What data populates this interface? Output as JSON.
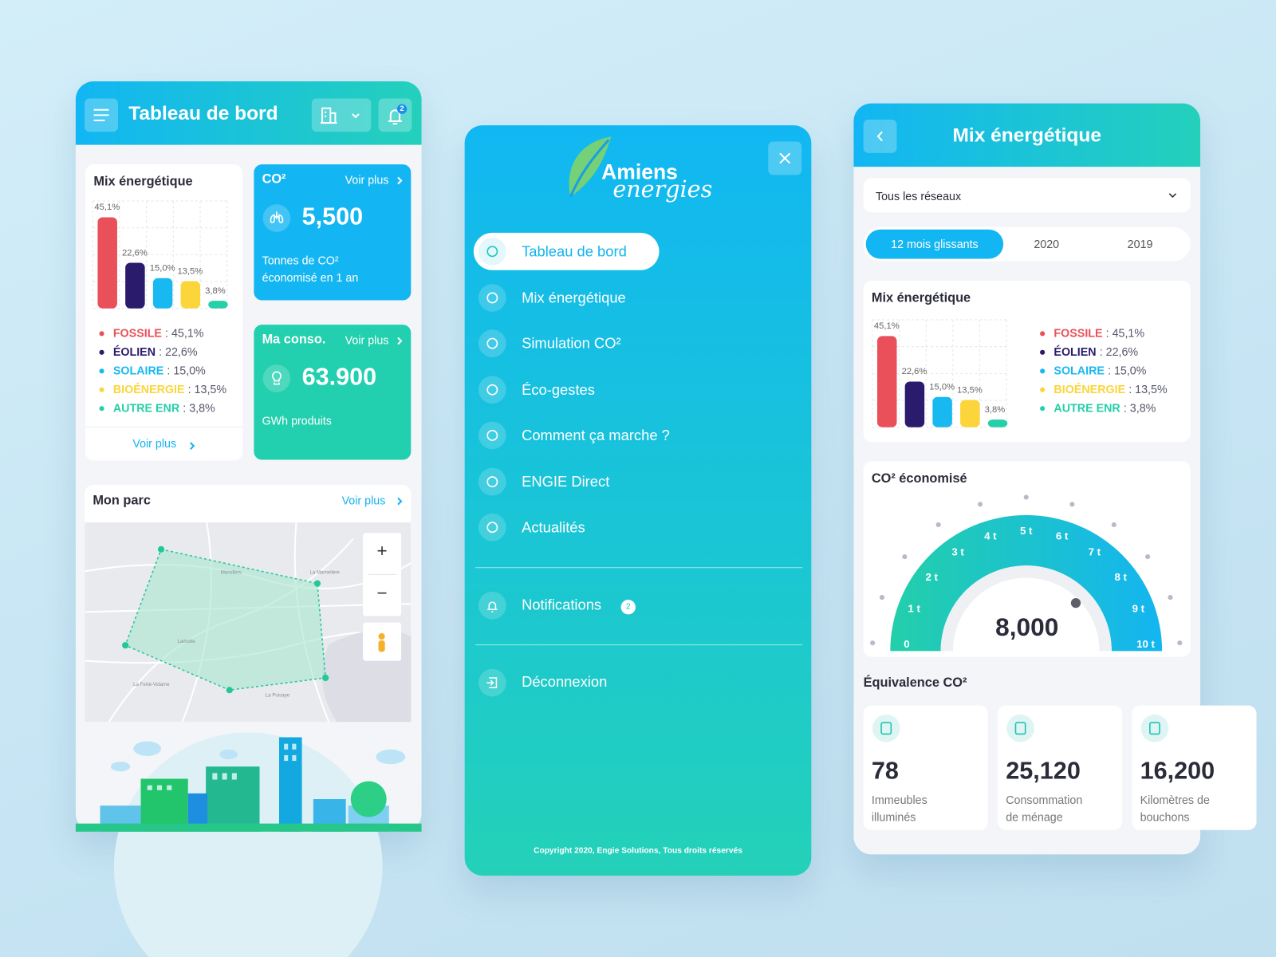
{
  "dashboard": {
    "header": {
      "title": "Tableau de bord",
      "notification_badge": "2"
    },
    "mix_card": {
      "title": "Mix énergétique",
      "chart": {
        "type": "bar",
        "categories": [
          "FOSSILE",
          "ÉOLIEN",
          "SOLAIRE",
          "BIOÉNERGIE",
          "AUTRE ENR"
        ],
        "values": [
          45.1,
          22.6,
          15.0,
          13.5,
          3.8
        ],
        "value_labels": [
          "45,1%",
          "22,6%",
          "15,0%",
          "13,5%",
          "3,8%"
        ],
        "legend_values": [
          ": 45,1%",
          ": 22,6%",
          ": 15,0%",
          ": 13,5%",
          ": 3,8%"
        ],
        "colors": [
          "#e9505a",
          "#2a1b6c",
          "#18b9f1",
          "#fbd53a",
          "#25cfa9"
        ]
      },
      "link": "Voir plus"
    },
    "co2_card": {
      "title": "CO²",
      "link": "Voir plus",
      "value": "5,500",
      "caption_lines": [
        "Tonnes de CO²",
        "économisé en 1 an"
      ]
    },
    "conso_card": {
      "title": "Ma conso.",
      "link": "Voir plus",
      "value": "63.900",
      "caption": "GWh produits"
    },
    "park_card": {
      "title": "Mon parc",
      "link": "Voir plus",
      "map": {
        "zoom_in": "+",
        "zoom_out": "−",
        "places": [
          "Morvillers",
          "La Marnelière",
          "Lamotte",
          "La Ferté-Vidame",
          "La Puisaye"
        ]
      }
    }
  },
  "menu": {
    "logo": {
      "line1": "Amiens",
      "line2": "energies"
    },
    "items": [
      "Tableau de bord",
      "Mix énergétique",
      "Simulation CO²",
      "Éco-gestes",
      "Comment ça marche ?",
      "ENGIE Direct",
      "Actualités"
    ],
    "notifications": {
      "label": "Notifications",
      "badge": "2"
    },
    "logout": "Déconnexion",
    "copyright": "Copyright 2020, Engie Solutions, Tous droits réservés"
  },
  "mix_page": {
    "header": {
      "title": "Mix énergétique"
    },
    "filter": "Tous les réseaux",
    "tabs": [
      "12 mois glissants",
      "2020",
      "2019"
    ],
    "mix_card": {
      "title": "Mix énergétique",
      "chart": {
        "type": "bar",
        "categories": [
          "FOSSILE",
          "ÉOLIEN",
          "SOLAIRE",
          "BIOÉNERGIE",
          "AUTRE ENR"
        ],
        "values": [
          45.1,
          22.6,
          15.0,
          13.5,
          3.8
        ],
        "value_labels": [
          "45,1%",
          "22,6%",
          "15,0%",
          "13,5%",
          "3,8%"
        ],
        "legend_values": [
          ": 45,1%",
          ": 22,6%",
          ": 15,0%",
          ": 13,5%",
          ": 3,8%"
        ],
        "colors": [
          "#e9505a",
          "#2a1b6c",
          "#18b9f1",
          "#fbd53a",
          "#25cfa9"
        ]
      }
    },
    "co2_card": {
      "title": "CO² économisé",
      "gauge": {
        "ticks": [
          "0",
          "1 t",
          "2 t",
          "3 t",
          "4 t",
          "5 t",
          "6 t",
          "7 t",
          "8 t",
          "9 t",
          "10 t"
        ],
        "value": "8,000"
      }
    },
    "equivalence": {
      "title": "Équivalence CO²",
      "cards": [
        {
          "value": "78",
          "label_lines": [
            "Immeubles",
            "illuminés"
          ]
        },
        {
          "value": "25,120",
          "label_lines": [
            "Consommation",
            "de ménage"
          ]
        },
        {
          "value": "16,200",
          "label_lines": [
            "Kilomètres de",
            "bouchons"
          ]
        }
      ]
    }
  }
}
